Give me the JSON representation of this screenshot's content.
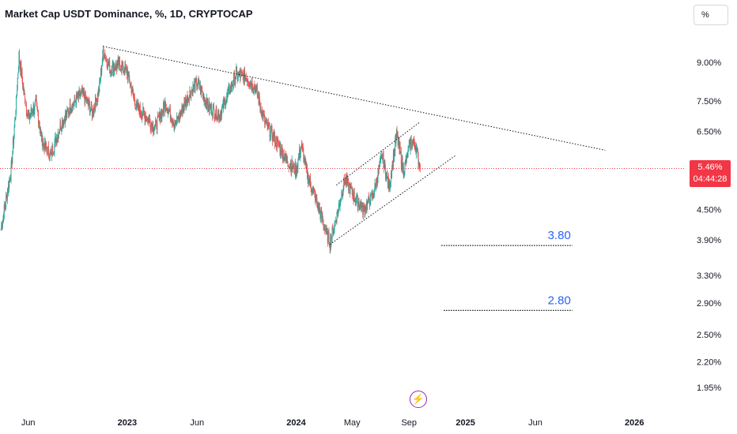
{
  "header": {
    "title": "Market Cap USDT Dominance, %, 1D, CRYPTOCAP",
    "scale_button": "%"
  },
  "price_badge": {
    "price": "5.46%",
    "countdown": "04:44:28",
    "color": "#f23645"
  },
  "icons": {
    "replay": "lightning-icon"
  },
  "colors": {
    "up": "#26a69a",
    "down": "#ef5350",
    "trendline": "#131722",
    "level_label": "#2962ff",
    "current_price_line": "#f23645"
  },
  "chart_data": {
    "type": "candlestick",
    "title": "Market Cap USDT Dominance, %, 1D, CRYPTOCAP",
    "xlabel": "",
    "ylabel": "",
    "y_scale": "log",
    "y_ticks": [
      "9.00%",
      "7.50%",
      "6.50%",
      "4.50%",
      "3.90%",
      "3.30%",
      "2.90%",
      "2.50%",
      "2.20%",
      "1.95%"
    ],
    "x_ticks": [
      {
        "label": "Jun",
        "date": "2022-06-01",
        "bold": false
      },
      {
        "label": "2023",
        "date": "2023-01-01",
        "bold": true
      },
      {
        "label": "Jun",
        "date": "2023-06-01",
        "bold": false
      },
      {
        "label": "2024",
        "date": "2024-01-01",
        "bold": true
      },
      {
        "label": "May",
        "date": "2024-05-01",
        "bold": false
      },
      {
        "label": "Sep",
        "date": "2024-09-01",
        "bold": false
      },
      {
        "label": "2025",
        "date": "2025-01-01",
        "bold": true
      },
      {
        "label": "Jun",
        "date": "2025-06-01",
        "bold": false
      },
      {
        "label": "2026",
        "date": "2026-01-01",
        "bold": true
      }
    ],
    "x_range": [
      "2022-04-01",
      "2026-04-20"
    ],
    "y_range_pct": [
      1.85,
      10.4
    ],
    "current_price": 5.46,
    "price_path": [
      [
        "2022-04-03",
        4.1
      ],
      [
        "2022-04-25",
        5.4
      ],
      [
        "2022-05-05",
        7.2
      ],
      [
        "2022-05-12",
        9.3
      ],
      [
        "2022-05-20",
        8.1
      ],
      [
        "2022-06-01",
        6.9
      ],
      [
        "2022-06-18",
        7.4
      ],
      [
        "2022-07-01",
        6.2
      ],
      [
        "2022-07-20",
        5.8
      ],
      [
        "2022-08-10",
        6.7
      ],
      [
        "2022-09-01",
        7.3
      ],
      [
        "2022-09-25",
        7.8
      ],
      [
        "2022-10-18",
        7.1
      ],
      [
        "2022-11-01",
        7.9
      ],
      [
        "2022-11-10",
        9.5
      ],
      [
        "2022-11-25",
        8.7
      ],
      [
        "2022-12-15",
        8.9
      ],
      [
        "2023-01-01",
        8.6
      ],
      [
        "2023-01-20",
        7.3
      ],
      [
        "2023-02-10",
        7.0
      ],
      [
        "2023-03-01",
        6.6
      ],
      [
        "2023-03-25",
        7.4
      ],
      [
        "2023-04-15",
        6.7
      ],
      [
        "2023-05-10",
        7.6
      ],
      [
        "2023-06-01",
        8.2
      ],
      [
        "2023-06-25",
        7.3
      ],
      [
        "2023-07-20",
        7.0
      ],
      [
        "2023-08-10",
        7.9
      ],
      [
        "2023-08-25",
        8.5
      ],
      [
        "2023-09-15",
        8.4
      ],
      [
        "2023-10-05",
        8.0
      ],
      [
        "2023-10-25",
        6.8
      ],
      [
        "2023-11-15",
        6.3
      ],
      [
        "2023-12-10",
        5.7
      ],
      [
        "2024-01-01",
        5.4
      ],
      [
        "2024-01-12",
        6.1
      ],
      [
        "2024-01-25",
        5.3
      ],
      [
        "2024-02-10",
        4.8
      ],
      [
        "2024-03-01",
        4.2
      ],
      [
        "2024-03-14",
        3.85
      ],
      [
        "2024-04-01",
        4.5
      ],
      [
        "2024-04-15",
        5.2
      ],
      [
        "2024-05-05",
        4.8
      ],
      [
        "2024-05-25",
        4.5
      ],
      [
        "2024-06-15",
        4.8
      ],
      [
        "2024-07-05",
        5.8
      ],
      [
        "2024-07-20",
        5.0
      ],
      [
        "2024-08-05",
        6.4
      ],
      [
        "2024-08-20",
        5.4
      ],
      [
        "2024-09-05",
        6.2
      ],
      [
        "2024-09-15",
        6.1
      ],
      [
        "2024-09-25",
        5.46
      ]
    ],
    "trendlines": [
      {
        "name": "descending-resistance",
        "from": [
          "2022-11-10",
          9.7
        ],
        "to": [
          "2025-10-30",
          5.95
        ]
      },
      {
        "name": "channel-upper",
        "from": [
          "2024-03-28",
          5.05
        ],
        "to": [
          "2024-09-25",
          6.8
        ]
      },
      {
        "name": "channel-lower",
        "from": [
          "2024-03-14",
          3.82
        ],
        "to": [
          "2024-12-10",
          5.8
        ]
      }
    ],
    "annotations": [
      {
        "label": "3.80",
        "value": 3.8,
        "from": "2024-11-10",
        "to": "2025-08-20"
      },
      {
        "label": "2.80",
        "value": 2.8,
        "from": "2024-11-15",
        "to": "2025-08-20"
      }
    ]
  }
}
